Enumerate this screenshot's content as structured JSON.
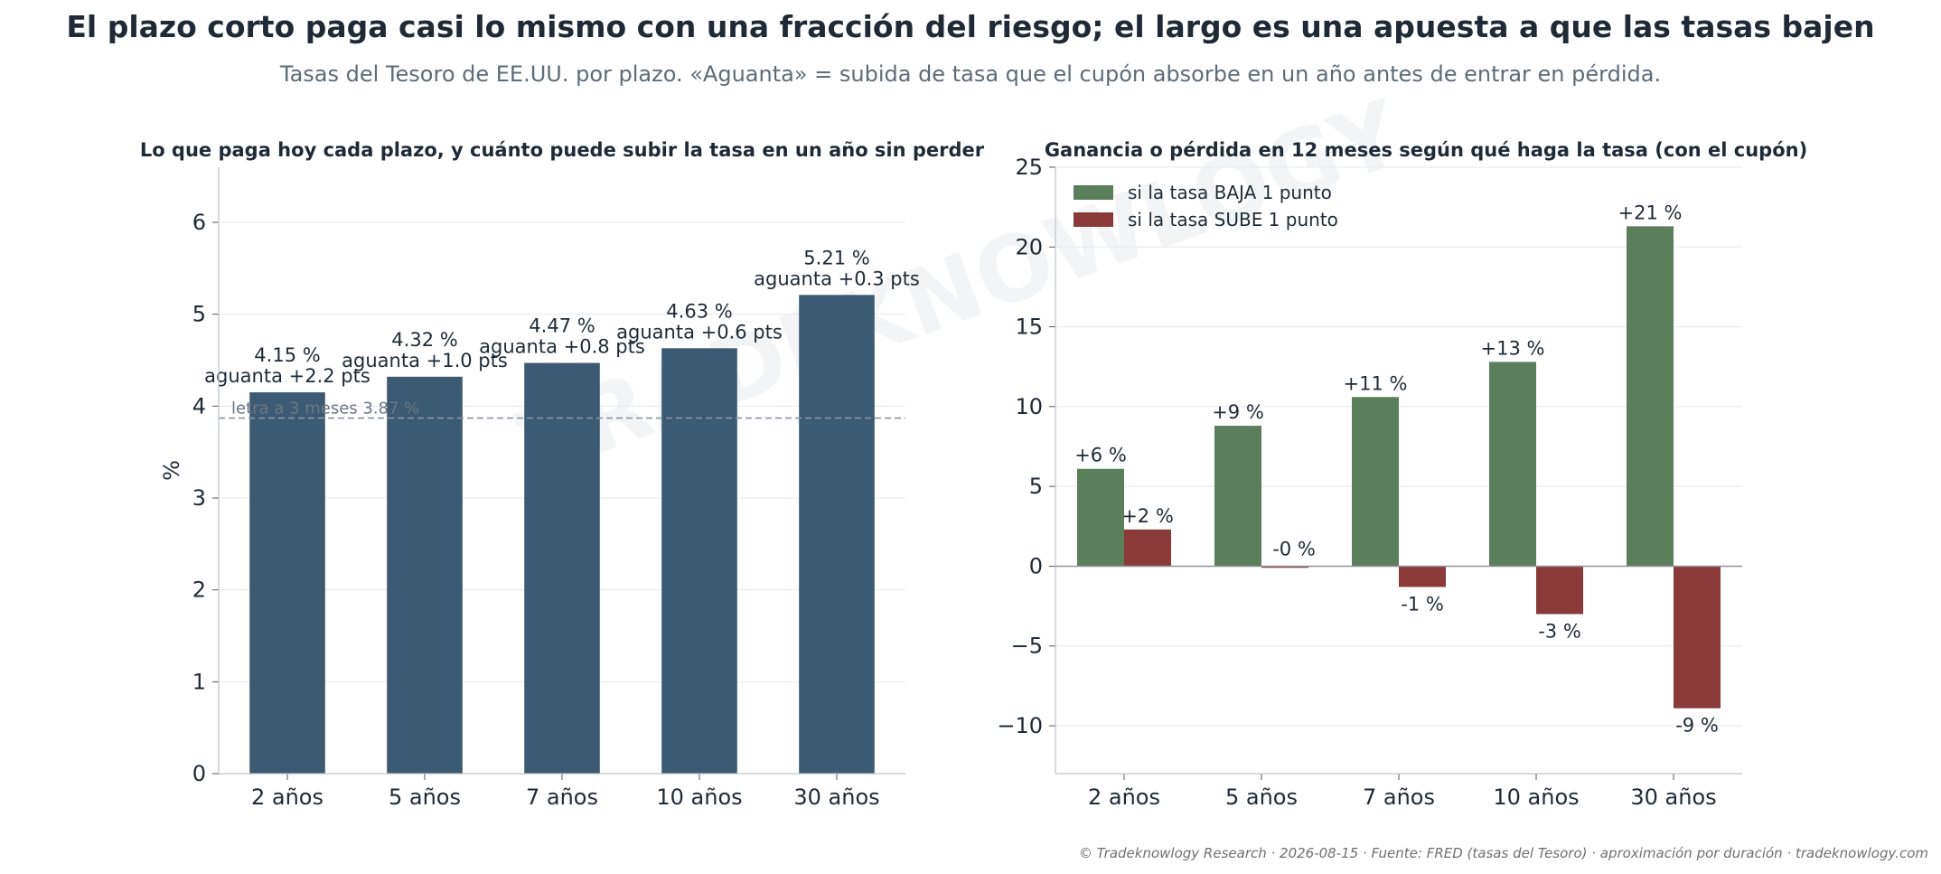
{
  "title": "El plazo corto paga casi lo mismo con una fracción del riesgo; el largo es una apuesta a que las tasas bajen",
  "subtitle": "Tasas del Tesoro de EE.UU. por plazo. «Aguanta» = subida de tasa que el cupón absorbe en un año antes de entrar en pérdida.",
  "watermark": "TRADEKNOWLOGY",
  "footer": "© Tradeknowlogy Research   ·   2026-08-15   ·   Fuente: FRED (tasas del Tesoro) · aproximación por duración   ·   tradeknowlogy.com",
  "colors": {
    "bar": "#3d5a73",
    "baja": "#5b7f5a",
    "sube": "#8b3a3a",
    "ref": "#8a93a0"
  },
  "chart_data": [
    {
      "type": "bar",
      "title": "Lo que paga hoy cada plazo, y cuánto puede subir la tasa en un año sin perder",
      "ylabel": "%",
      "ylim": [
        0,
        6.6
      ],
      "yticks": [
        0,
        1,
        2,
        3,
        4,
        5,
        6
      ],
      "categories": [
        "2 años",
        "5 años",
        "7 años",
        "10 años",
        "30 años"
      ],
      "values": [
        4.15,
        4.32,
        4.47,
        4.63,
        5.21
      ],
      "value_labels": [
        "4.15 %",
        "4.32 %",
        "4.47 %",
        "4.63 %",
        "5.21 %"
      ],
      "sub_labels": [
        "aguanta +2.2 pts",
        "aguanta +1.0 pts",
        "aguanta +0.8 pts",
        "aguanta +0.6 pts",
        "aguanta +0.3 pts"
      ],
      "reference": {
        "value": 3.87,
        "label": "letra a 3 meses 3.87 %"
      },
      "grid": true
    },
    {
      "type": "bar",
      "title": "Ganancia o pérdida en 12 meses según qué haga la tasa (con el cupón)",
      "ylim": [
        -13,
        25
      ],
      "yticks": [
        -10,
        -5,
        0,
        5,
        10,
        15,
        20,
        25
      ],
      "ytick_labels": [
        "−10",
        "−5",
        "0",
        "5",
        "10",
        "15",
        "20",
        "25"
      ],
      "categories": [
        "2 años",
        "5 años",
        "7 años",
        "10 años",
        "30 años"
      ],
      "series": [
        {
          "name": "si la tasa BAJA 1 punto",
          "values": [
            6.1,
            8.8,
            10.6,
            12.8,
            21.3
          ],
          "labels": [
            "+6 %",
            "+9 %",
            "+11 %",
            "+13 %",
            "+21 %"
          ]
        },
        {
          "name": "si la tasa SUBE 1 punto",
          "values": [
            2.3,
            -0.1,
            -1.3,
            -3.0,
            -8.9
          ],
          "labels": [
            "+2 %",
            "-0 %",
            "-1 %",
            "-3 %",
            "-9 %"
          ]
        }
      ],
      "legend": "top-left",
      "grid": true
    }
  ]
}
